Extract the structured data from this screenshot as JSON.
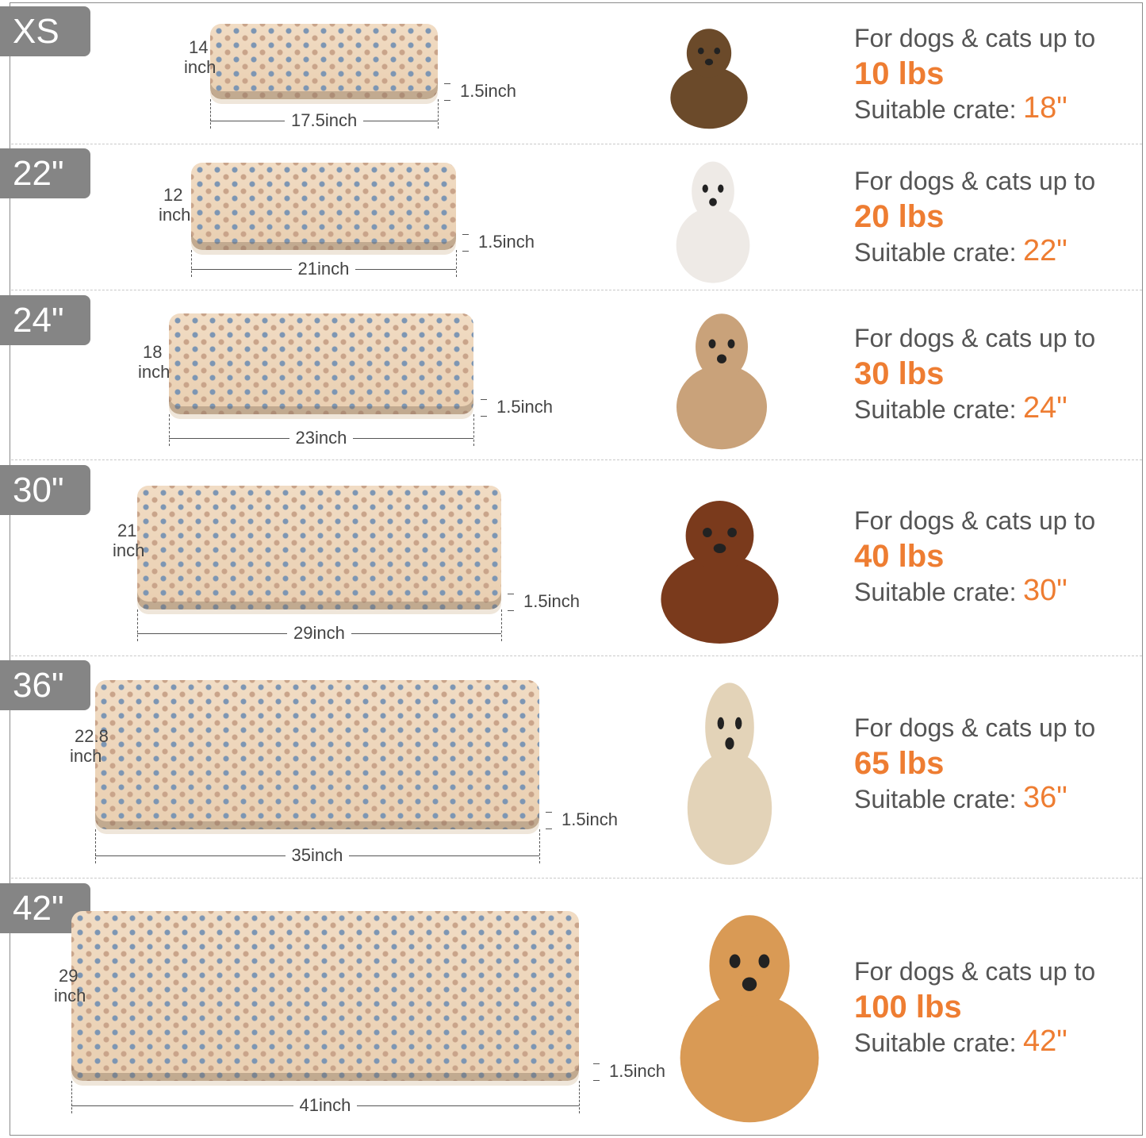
{
  "colors": {
    "accent": "#ee7d32",
    "badge": "#858585",
    "text": "#555555"
  },
  "rows": [
    {
      "size": "XS",
      "depth_num": "14",
      "depth_unit": "inch",
      "width": "17.5inch",
      "height": "1.5inch",
      "line1": "For dogs & cats up to",
      "weight": "10 lbs",
      "crate_label": "Suitable crate:",
      "crate": "18\"",
      "animal": "yorkie-puppy"
    },
    {
      "size": "22\"",
      "depth_num": "12",
      "depth_unit": "inch",
      "width": "21inch",
      "height": "1.5inch",
      "line1": "For dogs & cats up to",
      "weight": "20 lbs",
      "crate_label": "Suitable crate:",
      "crate": "22\"",
      "animal": "ragdoll-cat"
    },
    {
      "size": "24\"",
      "depth_num": "18",
      "depth_unit": "inch",
      "width": "23inch",
      "height": "1.5inch",
      "line1": "For dogs & cats up to",
      "weight": "30 lbs",
      "crate_label": "Suitable crate:",
      "crate": "24\"",
      "animal": "french-bulldog"
    },
    {
      "size": "30\"",
      "depth_num": "21",
      "depth_unit": "inch",
      "width": "29inch",
      "height": "1.5inch",
      "line1": "For dogs & cats up to",
      "weight": "40 lbs",
      "crate_label": "Suitable crate:",
      "crate": "30\"",
      "animal": "dachshund"
    },
    {
      "size": "36\"",
      "depth_num": "22.8",
      "depth_unit": "inch",
      "width": "35inch",
      "height": "1.5inch",
      "line1": "For dogs & cats up to",
      "weight": "65 lbs",
      "crate_label": "Suitable crate:",
      "crate": "36\"",
      "animal": "golden-retriever-sitting"
    },
    {
      "size": "42\"",
      "depth_num": "29",
      "depth_unit": "inch",
      "width": "41inch",
      "height": "1.5inch",
      "line1": "For dogs & cats up to",
      "weight": "100 lbs",
      "crate_label": "Suitable crate:",
      "crate": "42\"",
      "animal": "golden-retriever-lying"
    }
  ]
}
